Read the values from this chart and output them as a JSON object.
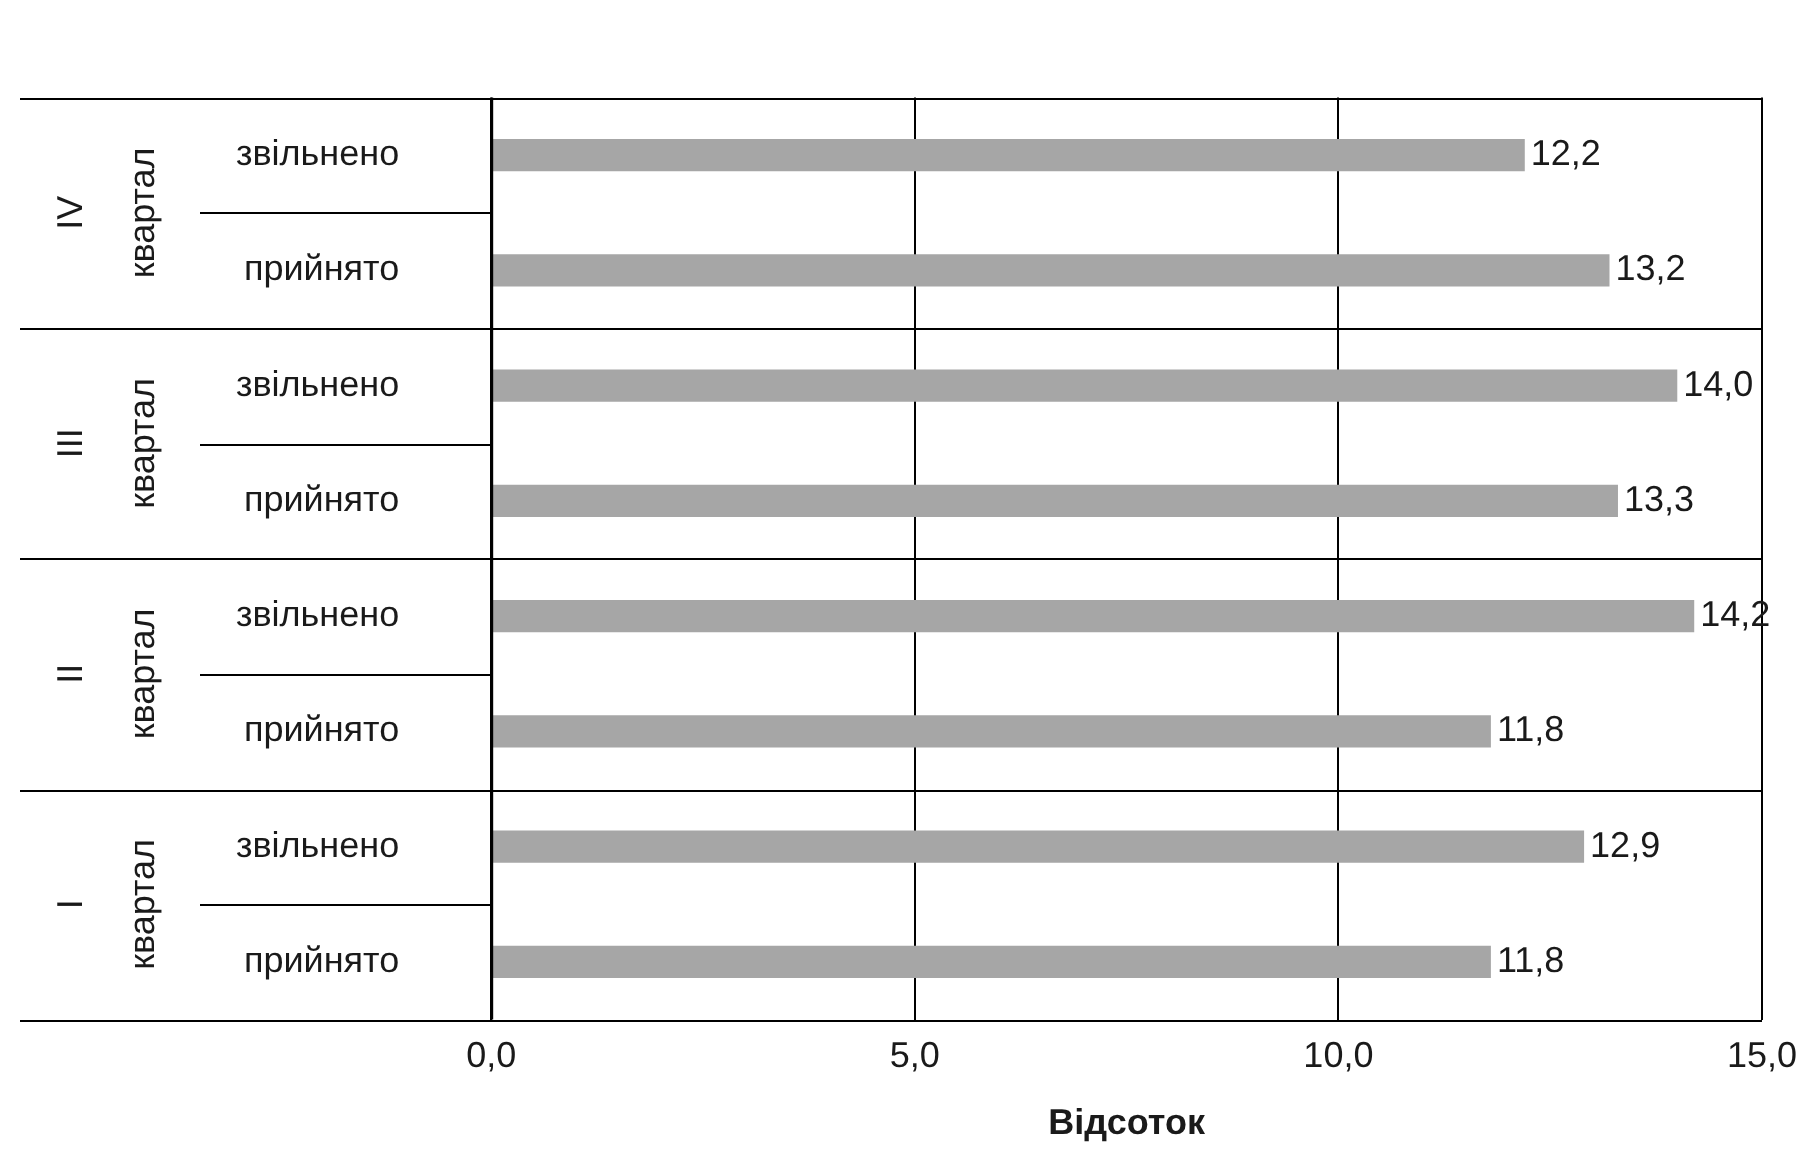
{
  "chart_data": {
    "type": "bar",
    "orientation": "horizontal",
    "xlabel": "Відсоток",
    "categories": [
      "звільнено",
      "прийнято",
      "звільнено",
      "прийнято",
      "звільнено",
      "прийнято",
      "звільнено",
      "прийнято"
    ],
    "values": [
      12.2,
      13.2,
      14.0,
      13.3,
      14.2,
      11.8,
      12.9,
      11.8
    ],
    "value_labels": [
      "12,2",
      "13,2",
      "14,0",
      "13,3",
      "14,2",
      "11,8",
      "12,9",
      "11,8"
    ],
    "color": "#a6a6a6",
    "xlim": [
      0,
      15
    ],
    "xticks": [
      {
        "value": 0,
        "label": "0,0"
      },
      {
        "value": 5,
        "label": "5,0"
      },
      {
        "value": 10,
        "label": "10,0"
      },
      {
        "value": 15,
        "label": "15,0"
      }
    ],
    "grid": "x",
    "annotations": [
      "IV квартал",
      "III квартал",
      "II квартал",
      "I квартал"
    ]
  }
}
